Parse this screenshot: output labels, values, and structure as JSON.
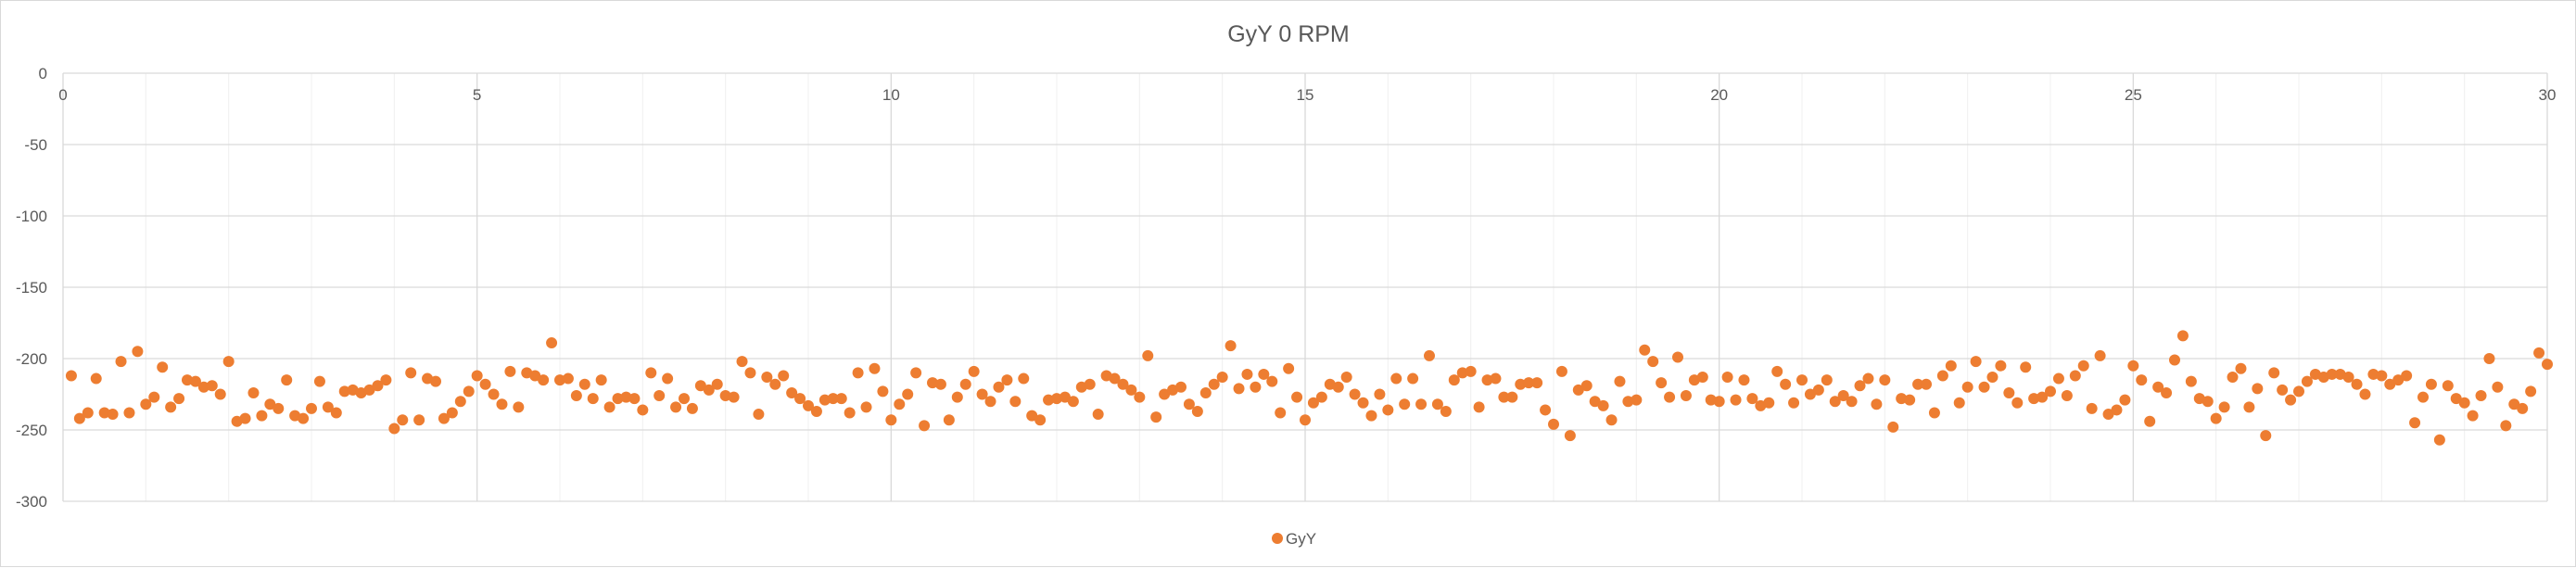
{
  "chart_data": {
    "type": "scatter",
    "title": "GyY 0 RPM",
    "xlabel": "",
    "ylabel": "",
    "xlim": [
      0,
      30
    ],
    "ylim": [
      -300,
      0
    ],
    "x_ticks": [
      0,
      5,
      10,
      15,
      20,
      25,
      30
    ],
    "y_ticks": [
      0,
      -50,
      -100,
      -150,
      -200,
      -250,
      -300
    ],
    "y_tick_labels": [
      "0",
      "-50",
      "-100",
      "-150",
      "-200",
      "-250",
      "-300"
    ],
    "x_tick_labels": [
      "0",
      "5",
      "10",
      "15",
      "20",
      "25",
      "30"
    ],
    "grid": {
      "major_x": true,
      "major_y": true,
      "minor_x": true
    },
    "legend": {
      "position": "bottom",
      "entries": [
        "GyY"
      ]
    },
    "colors": {
      "marker": "#ed7d31",
      "grid": "#d9d9d9",
      "minor_grid": "#f0f0f0",
      "text": "#595959"
    },
    "series": [
      {
        "name": "GyY",
        "x": [
          0.1,
          0.2,
          0.3,
          0.4,
          0.5,
          0.6,
          0.7,
          0.8,
          0.9,
          1.0,
          1.1,
          1.2,
          1.3,
          1.4,
          1.5,
          1.6,
          1.7,
          1.8,
          1.9,
          2.0,
          2.1,
          2.2,
          2.3,
          2.4,
          2.5,
          2.6,
          2.7,
          2.8,
          2.9,
          3.0,
          3.1,
          3.2,
          3.3,
          3.4,
          3.5,
          3.6,
          3.7,
          3.8,
          3.9,
          4.0,
          4.1,
          4.2,
          4.3,
          4.4,
          4.5,
          4.6,
          4.7,
          4.8,
          4.9,
          5.0,
          5.1,
          5.2,
          5.3,
          5.4,
          5.5,
          5.6,
          5.7,
          5.8,
          5.9,
          6.0,
          6.1,
          6.2,
          6.3,
          6.4,
          6.5,
          6.6,
          6.7,
          6.8,
          6.9,
          7.0,
          7.1,
          7.2,
          7.3,
          7.4,
          7.5,
          7.6,
          7.7,
          7.8,
          7.9,
          8.0,
          8.1,
          8.2,
          8.3,
          8.4,
          8.5,
          8.6,
          8.7,
          8.8,
          8.9,
          9.0,
          9.1,
          9.2,
          9.3,
          9.4,
          9.5,
          9.6,
          9.7,
          9.8,
          9.9,
          10.0,
          10.1,
          10.2,
          10.3,
          10.4,
          10.5,
          10.6,
          10.7,
          10.8,
          10.9,
          11.0,
          11.1,
          11.2,
          11.3,
          11.4,
          11.5,
          11.6,
          11.7,
          11.8,
          11.9,
          12.0,
          12.1,
          12.2,
          12.3,
          12.4,
          12.5,
          12.6,
          12.7,
          12.8,
          12.9,
          13.0,
          13.1,
          13.2,
          13.3,
          13.4,
          13.5,
          13.6,
          13.7,
          13.8,
          13.9,
          14.0,
          14.1,
          14.2,
          14.3,
          14.4,
          14.5,
          14.6,
          14.7,
          14.8,
          14.9,
          15.0,
          15.1,
          15.2,
          15.3,
          15.4,
          15.5,
          15.6,
          15.7,
          15.8,
          15.9,
          16.0,
          16.1,
          16.2,
          16.3,
          16.4,
          16.5,
          16.6,
          16.7,
          16.8,
          16.9,
          17.0,
          17.1,
          17.2,
          17.3,
          17.4,
          17.5,
          17.6,
          17.7,
          17.8,
          17.9,
          18.0,
          18.1,
          18.2,
          18.3,
          18.4,
          18.5,
          18.6,
          18.7,
          18.8,
          18.9,
          19.0,
          19.1,
          19.2,
          19.3,
          19.4,
          19.5,
          19.6,
          19.7,
          19.8,
          19.9,
          20.0,
          20.1,
          20.2,
          20.3,
          20.4,
          20.5,
          20.6,
          20.7,
          20.8,
          20.9,
          21.0,
          21.1,
          21.2,
          21.3,
          21.4,
          21.5,
          21.6,
          21.7,
          21.8,
          21.9,
          22.0,
          22.1,
          22.2,
          22.3,
          22.4,
          22.5,
          22.6,
          22.7,
          22.8,
          22.9,
          23.0,
          23.1,
          23.2,
          23.3,
          23.4,
          23.5,
          23.6,
          23.7,
          23.8,
          23.9,
          24.0,
          24.1,
          24.2,
          24.3,
          24.4,
          24.5,
          24.6,
          24.7,
          24.8,
          24.9,
          25.0,
          25.1,
          25.2,
          25.3,
          25.4,
          25.5,
          25.6,
          25.7,
          25.8,
          25.9,
          26.0,
          26.1,
          26.2,
          26.3,
          26.4,
          26.5,
          26.6,
          26.7,
          26.8,
          26.9,
          27.0,
          27.1,
          27.2,
          27.3,
          27.4,
          27.5,
          27.6,
          27.7,
          27.8,
          27.9,
          28.0,
          28.1,
          28.2,
          28.3,
          28.4,
          28.5,
          28.6,
          28.7,
          28.8,
          28.9,
          29.0,
          29.1,
          29.2,
          29.3,
          29.4,
          29.5,
          29.6,
          29.7,
          29.8,
          29.9,
          30.0
        ],
        "y": [
          -212,
          -242,
          -238,
          -214,
          -238,
          -239,
          -202,
          -238,
          -195,
          -232,
          -227,
          -206,
          -234,
          -228,
          -215,
          -216,
          -220,
          -219,
          -225,
          -202,
          -244,
          -242,
          -224,
          -240,
          -232,
          -235,
          -215,
          -240,
          -242,
          -235,
          -216,
          -234,
          -238,
          -223,
          -222,
          -224,
          -222,
          -219,
          -215,
          -249,
          -243,
          -210,
          -243,
          -214,
          -216,
          -242,
          -238,
          -230,
          -223,
          -212,
          -218,
          -225,
          -232,
          -209,
          -234,
          -210,
          -212,
          -215,
          -189,
          -215,
          -214,
          -226,
          -218,
          -228,
          -215,
          -234,
          -228,
          -227,
          -228,
          -236,
          -210,
          -226,
          -214,
          -234,
          -228,
          -235,
          -219,
          -222,
          -218,
          -226,
          -227,
          -202,
          -210,
          -239,
          -213,
          -218,
          -212,
          -224,
          -228,
          -233,
          -237,
          -229,
          -228,
          -228,
          -238,
          -210,
          -234,
          -207,
          -223,
          -243,
          -232,
          -225,
          -210,
          -247,
          -217,
          -218,
          -243,
          -227,
          -218,
          -209,
          -225,
          -230,
          -220,
          -215,
          -230,
          -214,
          -240,
          -243,
          -229,
          -228,
          -227,
          -230,
          -220,
          -218,
          -239,
          -212,
          -214,
          -218,
          -222,
          -227,
          -198,
          -241,
          -225,
          -222,
          -220,
          -232,
          -237,
          -224,
          -218,
          -213,
          -191,
          -221,
          -211,
          -220,
          -211,
          -216,
          -238,
          -207,
          -227,
          -243,
          -231,
          -227,
          -218,
          -220,
          -213,
          -225,
          -231,
          -240,
          -225,
          -236,
          -214,
          -232,
          -214,
          -232,
          -198,
          -232,
          -237,
          -215,
          -210,
          -209,
          -234,
          -215,
          -214,
          -227,
          -227,
          -218,
          -217,
          -217,
          -236,
          -246,
          -209,
          -254,
          -222,
          -219,
          -230,
          -233,
          -243,
          -216,
          -230,
          -229,
          -194,
          -202,
          -217,
          -227,
          -199,
          -226,
          -215,
          -213,
          -229,
          -230,
          -213,
          -229,
          -215,
          -228,
          -233,
          -231,
          -209,
          -218,
          -231,
          -215,
          -225,
          -222,
          -215,
          -230,
          -226,
          -230,
          -219,
          -214,
          -232,
          -215,
          -248,
          -228,
          -229,
          -218,
          -218,
          -238,
          -212,
          -205,
          -231,
          -220,
          -202,
          -220,
          -213,
          -205,
          -224,
          -231,
          -206,
          -228,
          -227,
          -223,
          -214,
          -226,
          -212,
          -205,
          -235,
          -198,
          -239,
          -236,
          -229,
          -205,
          -215,
          -244,
          -220,
          -224,
          -201,
          -184,
          -216,
          -228,
          -230,
          -242,
          -234,
          -213,
          -207,
          -234,
          -221,
          -254,
          -210,
          -222,
          -229,
          -223,
          -216,
          -211,
          -213,
          -211,
          -211,
          -213,
          -218,
          -225,
          -211,
          -212,
          -218,
          -215,
          -212,
          -245,
          -227,
          -218,
          -257,
          -219,
          -228,
          -231,
          -240,
          -226,
          -200,
          -220,
          -247,
          -232,
          -235,
          -223,
          -196,
          -204
        ]
      }
    ]
  }
}
